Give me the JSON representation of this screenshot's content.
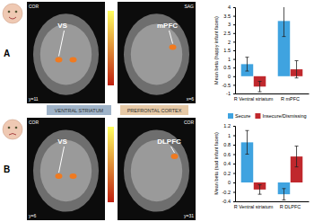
{
  "figure": {
    "panels": [
      {
        "letter": "A",
        "views": [
          {
            "view": "COR",
            "coord": "y=11",
            "region": "VS"
          },
          {
            "view": "SAG",
            "coord": "x=6",
            "region": "mPFC"
          }
        ]
      },
      {
        "letter": "B",
        "views": [
          {
            "view": "COR",
            "coord": "y=6",
            "region": "VS"
          },
          {
            "view": "COR",
            "coord": "y=31",
            "region": "DLPFC"
          }
        ]
      }
    ],
    "banners": [
      "VENTRAL STRIATUM",
      "PREFRONTAL CORTEX"
    ]
  },
  "chart_data": [
    {
      "type": "bar",
      "y_label": "Mean beta (happy infant faces)",
      "categories": [
        "R Ventral striatum",
        "R mPFC"
      ],
      "series": [
        {
          "color": "#3fa3e0",
          "values": [
            0.7,
            3.2
          ],
          "errors": [
            0.4,
            0.9
          ]
        },
        {
          "color": "#c0282d",
          "values": [
            -0.6,
            0.4
          ],
          "errors": [
            0.3,
            0.5
          ]
        }
      ],
      "ylim": [
        -1,
        4
      ],
      "yticks": [
        -1,
        -0.5,
        0,
        0.5,
        1,
        1.5,
        2,
        2.5,
        3,
        3.5,
        4
      ]
    },
    {
      "type": "bar",
      "y_label": "Mean beta (sad infant faces)",
      "categories": [
        "R Ventral striatum",
        "R DLPFC"
      ],
      "series": [
        {
          "name": "Secure",
          "color": "#3fa3e0",
          "values": [
            0.85,
            -0.25
          ],
          "errors": [
            0.25,
            0.12
          ]
        },
        {
          "name": "Insecure/Dismissing",
          "color": "#c0282d",
          "values": [
            -0.15,
            0.55
          ],
          "errors": [
            0.1,
            0.22
          ]
        }
      ],
      "ylim": [
        -0.4,
        1.2
      ],
      "yticks": [
        -0.4,
        -0.2,
        0,
        0.2,
        0.4,
        0.6,
        0.8,
        1,
        1.2
      ],
      "legend": "top"
    }
  ]
}
